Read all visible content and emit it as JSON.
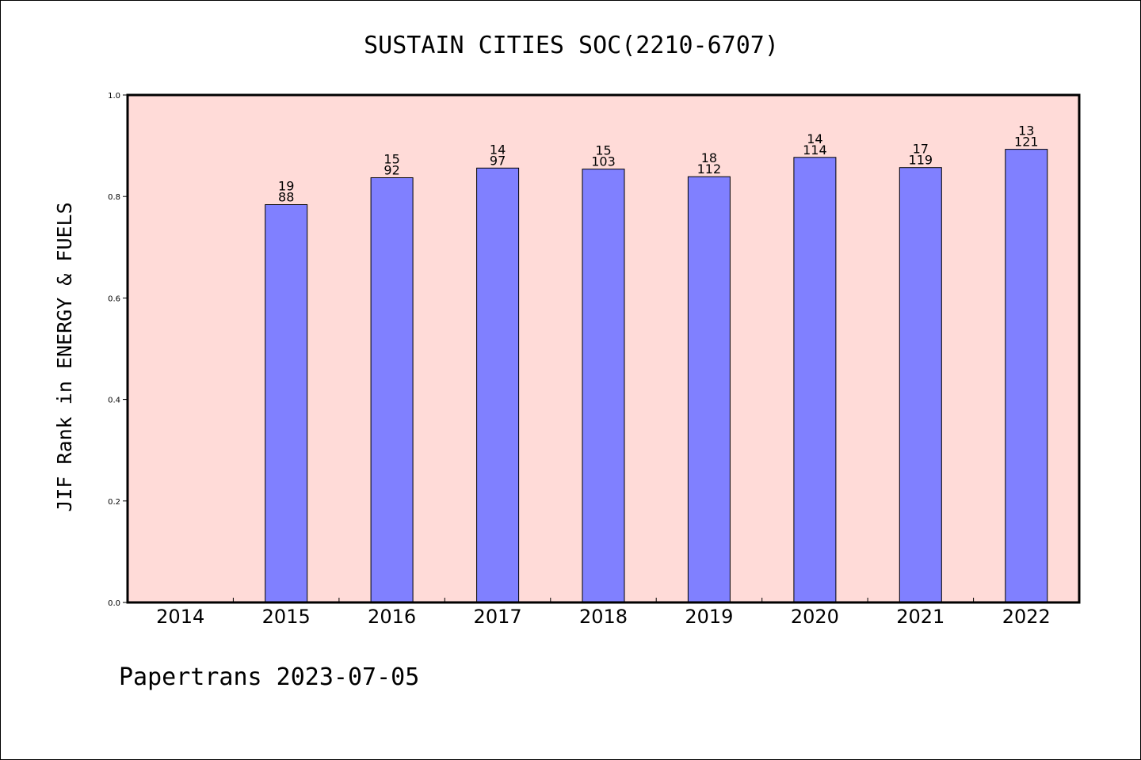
{
  "chart_data": {
    "type": "bar",
    "title": "SUSTAIN CITIES SOC(2210-6707)",
    "xlabel": "",
    "ylabel": "JIF Rank in ENERGY & FUELS",
    "ylim": [
      0,
      1.0
    ],
    "yticks": [
      "0.0",
      "0.2",
      "0.4",
      "0.6",
      "0.8",
      "1.0"
    ],
    "categories": [
      "2014",
      "2015",
      "2016",
      "2017",
      "2018",
      "2019",
      "2020",
      "2021",
      "2022"
    ],
    "values": [
      null,
      0.784,
      0.837,
      0.856,
      0.854,
      0.839,
      0.877,
      0.857,
      0.893
    ],
    "ranks": [
      null,
      "19",
      "15",
      "14",
      "15",
      "18",
      "14",
      "17",
      "13"
    ],
    "totals": [
      null,
      "88",
      "92",
      "97",
      "103",
      "112",
      "114",
      "119",
      "121"
    ],
    "grid": false,
    "legend": "none",
    "colors": {
      "plot_background": "#ffdbd8",
      "bar_fill": "#8080ff",
      "bar_stroke": "#000000"
    }
  },
  "footer": {
    "text": "Papertrans 2023-07-05"
  }
}
